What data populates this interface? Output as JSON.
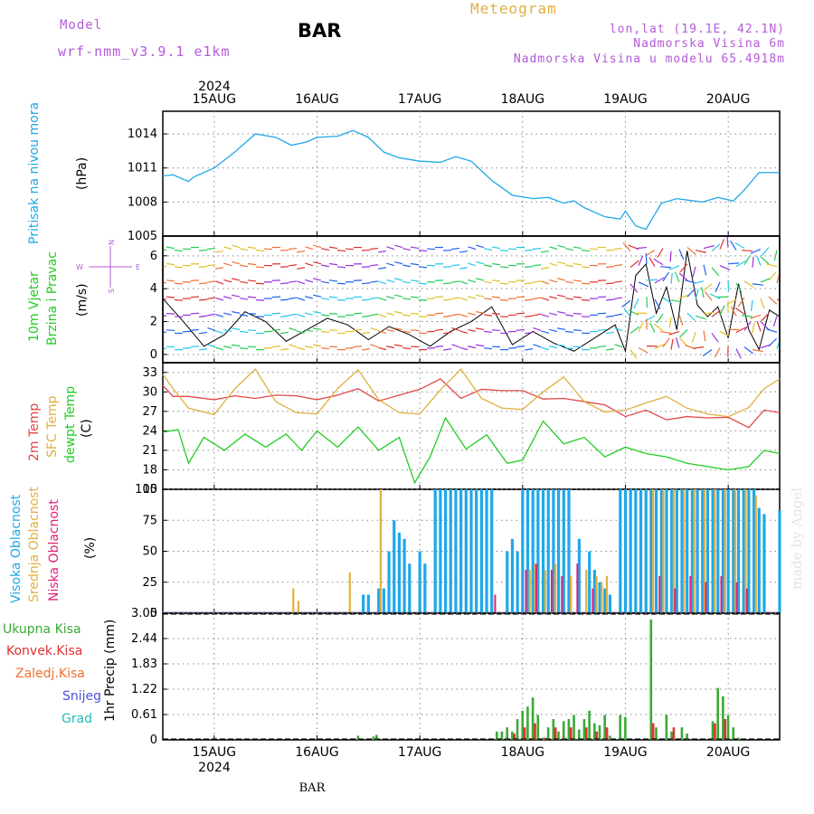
{
  "header": {
    "model_label": "Model",
    "model_name": "wrf-nmm_v3.9.1  e1km",
    "station": "BAR",
    "app_title": "Meteogram",
    "coords": "lon,lat (19.1E, 42.1N)",
    "elevation": "Nadmorska Visina 6m",
    "model_elevation": "Nadmorska Visina u modelu 65.4918m",
    "watermark": "made by Angel",
    "footer_station": "BAR",
    "year": "2024"
  },
  "colors": {
    "pressure": "#1fa8e8",
    "wind_label": "#22cc22",
    "wind_compass": "#b45ad8",
    "t2m": "#e04848",
    "tsfc": "#e0b040",
    "dewpt": "#22cc22",
    "cloud_high": "#1fa8e8",
    "cloud_mid": "#e0b040",
    "cloud_low": "#e0207a",
    "precip_total": "#3aaa35",
    "precip_conv": "#e03030",
    "precip_frozen": "#f07030",
    "snow": "#5050e0",
    "hail": "#22bbbb"
  },
  "legends": {
    "pressure": [
      "Pritisak na nivou mora"
    ],
    "pressure_unit": "(hPa)",
    "wind": [
      "10m Vjetar",
      "Brzina i Pravac"
    ],
    "wind_unit": "(m/s)",
    "compass": {
      "n": "N",
      "w": "W",
      "e": "E",
      "s": "S"
    },
    "temp": [
      "2m Temp",
      "SFC Temp",
      "dewpt Temp"
    ],
    "temp_unit": "(C)",
    "cloud": [
      "Visoka Oblacnost",
      "Srednja Oblacnost",
      "Niska Oblacnost"
    ],
    "cloud_unit": "(%)",
    "precip": [
      "Ukupna Kisa",
      "Konvek.Kisa",
      "Zaledj.Kisa",
      "Snijeg",
      "Grad"
    ],
    "precip_unit": "1hr Precip (mm)"
  },
  "chart_data": {
    "type": "meteogram",
    "time": {
      "start_day": 14.5,
      "end_day": 20.5,
      "major_day_labels": [
        "15AUG",
        "16AUG",
        "17AUG",
        "18AUG",
        "19AUG",
        "20AUG"
      ]
    },
    "panels": [
      {
        "id": "pressure",
        "type": "line",
        "ylabel": "(hPa)",
        "yticks": [
          1005,
          1008,
          1011,
          1014
        ],
        "ylim": [
          1005,
          1016
        ],
        "series": [
          {
            "name": "Pritisak na nivou mora",
            "x": [
              14.5,
              14.6,
              14.75,
              14.8,
              15.0,
              15.2,
              15.4,
              15.6,
              15.75,
              15.9,
              16.0,
              16.2,
              16.35,
              16.5,
              16.65,
              16.8,
              17.0,
              17.2,
              17.35,
              17.5,
              17.7,
              17.9,
              18.1,
              18.25,
              18.4,
              18.5,
              18.6,
              18.8,
              18.95,
              19.0,
              19.1,
              19.2,
              19.35,
              19.5,
              19.75,
              19.9,
              20.05,
              20.15,
              20.3,
              20.5
            ],
            "y": [
              1010.3,
              1010.4,
              1009.8,
              1010.2,
              1011.0,
              1012.4,
              1014.0,
              1013.7,
              1013.0,
              1013.3,
              1013.7,
              1013.8,
              1014.3,
              1013.7,
              1012.4,
              1011.9,
              1011.6,
              1011.5,
              1012.0,
              1011.6,
              1009.9,
              1008.6,
              1008.3,
              1008.4,
              1007.9,
              1008.1,
              1007.5,
              1006.7,
              1006.5,
              1007.2,
              1005.9,
              1005.6,
              1007.9,
              1008.3,
              1008.0,
              1008.4,
              1008.1,
              1009.0,
              1010.6,
              1010.6
            ]
          }
        ]
      },
      {
        "id": "wind",
        "type": "vector",
        "ylabel": "(m/s)",
        "yticks": [
          0,
          2,
          4,
          6
        ],
        "ylim": [
          -0.5,
          7.2
        ],
        "series": [
          {
            "name": "10m Vjetar Brzina i Pravac",
            "x": [
              14.5,
              14.7,
              14.9,
              15.1,
              15.3,
              15.5,
              15.7,
              15.9,
              16.1,
              16.3,
              16.5,
              16.7,
              16.9,
              17.1,
              17.3,
              17.5,
              17.7,
              17.9,
              18.1,
              18.3,
              18.5,
              18.7,
              18.9,
              19.0,
              19.1,
              19.2,
              19.3,
              19.4,
              19.5,
              19.6,
              19.7,
              19.8,
              19.9,
              20.0,
              20.1,
              20.2,
              20.3,
              20.4,
              20.5
            ],
            "y": [
              3.4,
              2.0,
              0.5,
              1.2,
              2.6,
              2.0,
              0.8,
              1.5,
              2.2,
              1.8,
              0.9,
              1.7,
              1.2,
              0.5,
              1.4,
              2.0,
              2.9,
              0.6,
              1.4,
              0.7,
              0.2,
              1.0,
              1.8,
              0.2,
              4.8,
              5.5,
              2.5,
              4.1,
              1.5,
              6.3,
              3.0,
              2.3,
              2.9,
              1.0,
              4.3,
              1.5,
              0.3,
              2.7,
              2.3
            ]
          }
        ]
      },
      {
        "id": "temperature",
        "type": "line",
        "ylabel": "(C)",
        "yticks": [
          15,
          18,
          21,
          24,
          27,
          30,
          33
        ],
        "ylim": [
          15,
          34.5
        ],
        "series": [
          {
            "name": "2m Temp",
            "x": [
              14.5,
              14.6,
              14.75,
              15.0,
              15.2,
              15.4,
              15.6,
              15.8,
              16.0,
              16.2,
              16.4,
              16.6,
              16.8,
              17.0,
              17.2,
              17.4,
              17.6,
              17.8,
              18.0,
              18.2,
              18.4,
              18.6,
              18.8,
              19.0,
              19.2,
              19.4,
              19.6,
              19.8,
              20.0,
              20.2,
              20.35,
              20.5
            ],
            "y": [
              31.0,
              29.3,
              29.3,
              28.8,
              29.4,
              29.0,
              29.5,
              29.4,
              28.8,
              29.5,
              30.5,
              28.6,
              29.5,
              30.4,
              32.0,
              29.0,
              30.4,
              30.2,
              30.2,
              28.9,
              29.0,
              28.5,
              28.0,
              26.2,
              27.2,
              25.7,
              26.2,
              26.0,
              26.1,
              24.5,
              27.2,
              26.8
            ]
          },
          {
            "name": "SFC Temp",
            "x": [
              14.5,
              14.6,
              14.75,
              15.0,
              15.2,
              15.4,
              15.6,
              15.8,
              16.0,
              16.2,
              16.4,
              16.6,
              16.8,
              17.0,
              17.2,
              17.4,
              17.6,
              17.8,
              18.0,
              18.2,
              18.4,
              18.6,
              18.8,
              19.0,
              19.2,
              19.4,
              19.6,
              19.8,
              20.0,
              20.2,
              20.35,
              20.5
            ],
            "y": [
              32.7,
              30.5,
              27.5,
              26.5,
              30.5,
              33.5,
              28.5,
              26.8,
              26.6,
              30.5,
              33.4,
              28.8,
              26.8,
              26.6,
              30.3,
              33.5,
              29.0,
              27.5,
              27.3,
              30.0,
              32.3,
              28.5,
              26.9,
              27.2,
              28.3,
              29.3,
              27.5,
              26.6,
              26.2,
              27.6,
              30.5,
              32.0
            ]
          },
          {
            "name": "dewpt Temp",
            "x": [
              14.5,
              14.65,
              14.75,
              14.9,
              15.1,
              15.3,
              15.5,
              15.7,
              15.85,
              16.0,
              16.2,
              16.4,
              16.6,
              16.8,
              16.95,
              17.1,
              17.25,
              17.45,
              17.65,
              17.85,
              18.0,
              18.2,
              18.4,
              18.6,
              18.8,
              19.0,
              19.2,
              19.4,
              19.6,
              19.8,
              20.0,
              20.2,
              20.35,
              20.5
            ],
            "y": [
              23.8,
              24.2,
              19.0,
              23.0,
              21.0,
              23.5,
              21.5,
              23.5,
              21.0,
              24.0,
              21.5,
              24.6,
              21.0,
              23.0,
              16.0,
              20.0,
              26.0,
              21.2,
              23.4,
              19.0,
              19.5,
              25.5,
              22.0,
              23.0,
              20.0,
              21.5,
              20.5,
              20.0,
              19.0,
              18.5,
              18.0,
              18.5,
              21.0,
              20.5
            ]
          }
        ]
      },
      {
        "id": "cloud",
        "type": "bar",
        "ylabel": "(%)",
        "yticks": [
          0,
          25,
          50,
          75,
          100
        ],
        "ylim": [
          0,
          100
        ],
        "series": [
          {
            "name": "Visoka Oblacnost",
            "x": [
              16.45,
              16.5,
              16.6,
              16.65,
              16.7,
              16.75,
              16.8,
              16.85,
              16.9,
              17.0,
              17.05,
              17.15,
              17.2,
              17.25,
              17.3,
              17.35,
              17.4,
              17.45,
              17.5,
              17.55,
              17.6,
              17.65,
              17.7,
              17.85,
              17.9,
              17.95,
              18.0,
              18.05,
              18.1,
              18.15,
              18.2,
              18.25,
              18.3,
              18.35,
              18.4,
              18.45,
              18.55,
              18.65,
              18.7,
              18.75,
              18.8,
              18.85,
              18.95,
              19.0,
              19.05,
              19.1,
              19.15,
              19.2,
              19.25,
              19.3,
              19.35,
              19.4,
              19.45,
              19.5,
              19.55,
              19.6,
              19.65,
              19.7,
              19.75,
              19.8,
              19.85,
              19.9,
              19.95,
              20.0,
              20.05,
              20.1,
              20.15,
              20.2,
              20.25,
              20.3,
              20.35,
              20.5
            ],
            "y": [
              15,
              15,
              20,
              20,
              50,
              75,
              65,
              60,
              40,
              50,
              40,
              100,
              100,
              100,
              100,
              100,
              100,
              100,
              100,
              100,
              100,
              100,
              100,
              50,
              60,
              50,
              100,
              100,
              100,
              100,
              100,
              100,
              100,
              100,
              100,
              100,
              60,
              50,
              35,
              25,
              20,
              15,
              100,
              100,
              100,
              100,
              100,
              100,
              100,
              100,
              100,
              100,
              100,
              100,
              100,
              100,
              100,
              100,
              100,
              100,
              100,
              100,
              100,
              100,
              100,
              100,
              100,
              100,
              100,
              85,
              80,
              83
            ]
          },
          {
            "name": "Srednja Oblacnost",
            "x": [
              15.75,
              15.8,
              16.3,
              16.6,
              18.05,
              18.1,
              18.2,
              18.3,
              18.45,
              18.6,
              18.7,
              18.75,
              18.8,
              19.25,
              19.35,
              19.45,
              19.55,
              19.65,
              19.75,
              19.85,
              19.95,
              20.05,
              20.15,
              20.25
            ],
            "y": [
              20,
              10,
              33,
              100,
              35,
              40,
              35,
              40,
              30,
              35,
              30,
              25,
              30,
              100,
              100,
              100,
              100,
              100,
              100,
              100,
              100,
              100,
              100,
              95
            ]
          },
          {
            "name": "Niska Oblacnost",
            "x": [
              17.75,
              18.05,
              18.15,
              18.3,
              18.4,
              18.55,
              18.7,
              19.35,
              19.5,
              19.65,
              19.8,
              19.95,
              20.1,
              20.2
            ],
            "y": [
              15,
              35,
              40,
              35,
              30,
              40,
              20,
              30,
              20,
              30,
              25,
              30,
              25,
              20
            ]
          }
        ]
      },
      {
        "id": "precip",
        "type": "bar",
        "ylabel": "1hr Precip (mm)",
        "yticks": [
          0,
          0.61,
          1.22,
          1.83,
          2.44,
          3.05
        ],
        "ylim": [
          0,
          3.05
        ],
        "series": [
          {
            "name": "Ukupna Kisa",
            "x": [
              16.4,
              16.55,
              16.58,
              17.75,
              17.8,
              17.85,
              17.9,
              17.95,
              18.0,
              18.05,
              18.1,
              18.15,
              18.2,
              18.25,
              18.3,
              18.35,
              18.4,
              18.45,
              18.5,
              18.55,
              18.6,
              18.65,
              18.7,
              18.75,
              18.8,
              18.85,
              18.95,
              19.0,
              19.25,
              19.3,
              19.4,
              19.45,
              19.55,
              19.6,
              19.85,
              19.9,
              19.95,
              20.0,
              20.05,
              20.1
            ],
            "y": [
              0.1,
              0.08,
              0.12,
              0.2,
              0.2,
              0.3,
              0.2,
              0.5,
              0.7,
              0.8,
              1.02,
              0.6,
              0.05,
              0.3,
              0.5,
              0.2,
              0.45,
              0.5,
              0.6,
              0.25,
              0.5,
              0.7,
              0.4,
              0.35,
              0.6,
              0.1,
              0.6,
              0.55,
              2.9,
              0.3,
              0.6,
              0.2,
              0.3,
              0.15,
              0.45,
              1.25,
              1.05,
              0.6,
              0.3,
              0.05
            ]
          },
          {
            "name": "Konvek.Kisa",
            "x": [
              17.9,
              18.0,
              18.1,
              18.2,
              18.3,
              18.45,
              18.6,
              18.7,
              18.8,
              19.25,
              19.45,
              19.85,
              19.95
            ],
            "y": [
              0.15,
              0.3,
              0.4,
              0.05,
              0.3,
              0.3,
              0.3,
              0.2,
              0.3,
              0.4,
              0.3,
              0.4,
              0.5
            ]
          }
        ]
      }
    ]
  }
}
